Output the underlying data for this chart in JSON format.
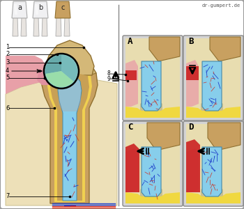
{
  "watermark": "dr-gumpert.de",
  "outer_bg": "#cccccc",
  "inner_bg": "#ffffff",
  "tooth_color": "#c8a060",
  "tooth_light": "#d4b878",
  "dentin_color": "#b89850",
  "pulp_color": "#87CEEB",
  "pulp_dark": "#6aaecc",
  "gum_color": "#e8a0a0",
  "gum_pink": "#e8b4b4",
  "bone_color": "#f0e8c0",
  "bone_yellow": "#f0d860",
  "red_color": "#cc2222",
  "red_bright": "#ee3333",
  "nerve_blue": "#2244cc",
  "nerve_red": "#cc3322",
  "gray_bg": "#d0d0d0",
  "panel_bg": "#c8c8c8",
  "white_area": "#e8f4f8",
  "labels_left": [
    "1",
    "2",
    "3",
    "4",
    "5",
    "6",
    "7"
  ],
  "panel_letters": [
    "A",
    "B",
    "C",
    "D"
  ]
}
